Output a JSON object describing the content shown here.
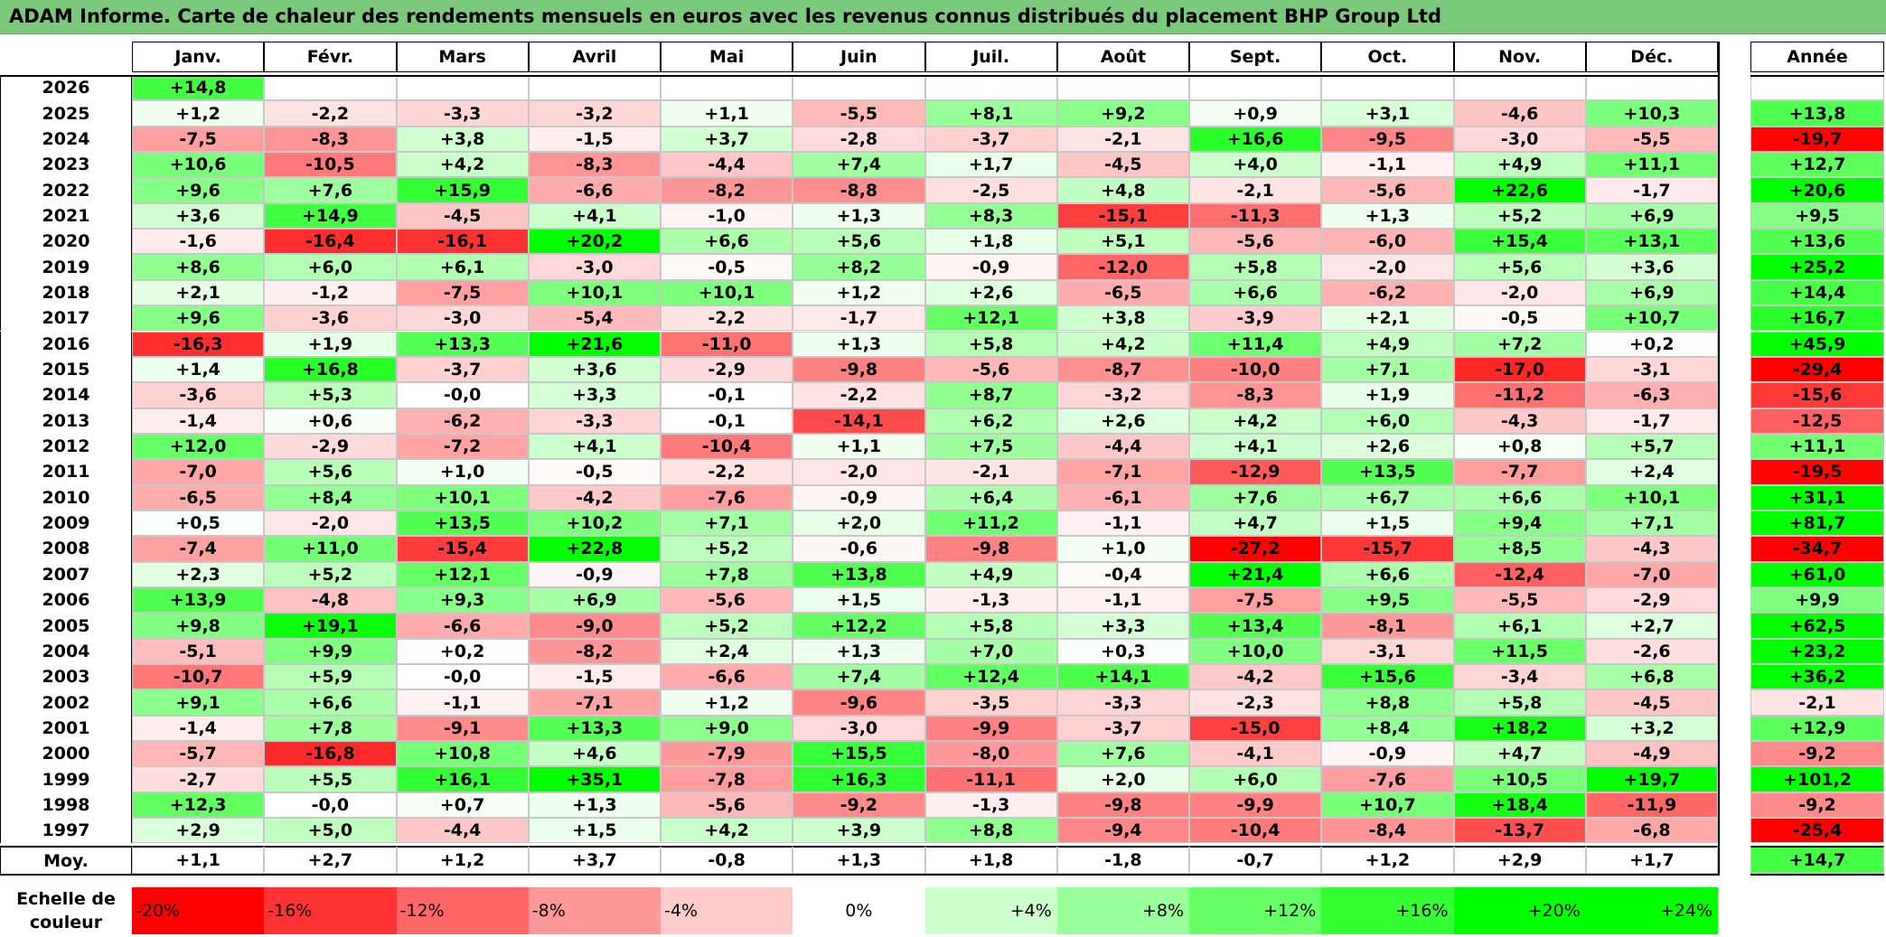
{
  "title": "ADAM Informe. Carte de chaleur des rendements mensuels en euros avec les revenus connus distribués du placement BHP Group Ltd",
  "months": [
    "Janv.",
    "Févr.",
    "Mars",
    "Avril",
    "Mai",
    "Juin",
    "Juil.",
    "Août",
    "Sept.",
    "Oct.",
    "Nov.",
    "Déc."
  ],
  "annual_header": "Année",
  "avg_label": "Moy.",
  "scale_label": "Echelle de couleur",
  "chart_data": {
    "type": "heatmap",
    "title": "ADAM Informe. Carte de chaleur des rendements mensuels en euros avec les revenus connus distribués du placement BHP Group Ltd",
    "columns": [
      "Janv.",
      "Févr.",
      "Mars",
      "Avril",
      "Mai",
      "Juin",
      "Juil.",
      "Août",
      "Sept.",
      "Oct.",
      "Nov.",
      "Déc."
    ],
    "rows": [
      {
        "year": "2026",
        "values": [
          "+14,8",
          "",
          "",
          "",
          "",
          "",
          "",
          "",
          "",
          "",
          "",
          ""
        ],
        "annual": ""
      },
      {
        "year": "2025",
        "values": [
          "+1,2",
          "-2,2",
          "-3,3",
          "-3,2",
          "+1,1",
          "-5,5",
          "+8,1",
          "+9,2",
          "+0,9",
          "+3,1",
          "-4,6",
          "+10,3"
        ],
        "annual": "+13,8"
      },
      {
        "year": "2024",
        "values": [
          "-7,5",
          "-8,3",
          "+3,8",
          "-1,5",
          "+3,7",
          "-2,8",
          "-3,7",
          "-2,1",
          "+16,6",
          "-9,5",
          "-3,0",
          "-5,5"
        ],
        "annual": "-19,7"
      },
      {
        "year": "2023",
        "values": [
          "+10,6",
          "-10,5",
          "+4,2",
          "-8,3",
          "-4,4",
          "+7,4",
          "+1,7",
          "-4,5",
          "+4,0",
          "-1,1",
          "+4,9",
          "+11,1"
        ],
        "annual": "+12,7"
      },
      {
        "year": "2022",
        "values": [
          "+9,6",
          "+7,6",
          "+15,9",
          "-6,6",
          "-8,2",
          "-8,8",
          "-2,5",
          "+4,8",
          "-2,1",
          "-5,6",
          "+22,6",
          "-1,7"
        ],
        "annual": "+20,6"
      },
      {
        "year": "2021",
        "values": [
          "+3,6",
          "+14,9",
          "-4,5",
          "+4,1",
          "-1,0",
          "+1,3",
          "+8,3",
          "-15,1",
          "-11,3",
          "+1,3",
          "+5,2",
          "+6,9"
        ],
        "annual": "+9,5"
      },
      {
        "year": "2020",
        "values": [
          "-1,6",
          "-16,4",
          "-16,1",
          "+20,2",
          "+6,6",
          "+5,6",
          "+1,8",
          "+5,1",
          "-5,6",
          "-6,0",
          "+15,4",
          "+13,1"
        ],
        "annual": "+13,6"
      },
      {
        "year": "2019",
        "values": [
          "+8,6",
          "+6,0",
          "+6,1",
          "-3,0",
          "-0,5",
          "+8,2",
          "-0,9",
          "-12,0",
          "+5,8",
          "-2,0",
          "+5,6",
          "+3,6"
        ],
        "annual": "+25,2"
      },
      {
        "year": "2018",
        "values": [
          "+2,1",
          "-1,2",
          "-7,5",
          "+10,1",
          "+10,1",
          "+1,2",
          "+2,6",
          "-6,5",
          "+6,6",
          "-6,2",
          "-2,0",
          "+6,9"
        ],
        "annual": "+14,4"
      },
      {
        "year": "2017",
        "values": [
          "+9,6",
          "-3,6",
          "-3,0",
          "-5,4",
          "-2,2",
          "-1,7",
          "+12,1",
          "+3,8",
          "-3,9",
          "+2,1",
          "-0,5",
          "+10,7"
        ],
        "annual": "+16,7"
      },
      {
        "year": "2016",
        "values": [
          "-16,3",
          "+1,9",
          "+13,3",
          "+21,6",
          "-11,0",
          "+1,3",
          "+5,8",
          "+4,2",
          "+11,4",
          "+4,9",
          "+7,2",
          "+0,2"
        ],
        "annual": "+45,9"
      },
      {
        "year": "2015",
        "values": [
          "+1,4",
          "+16,8",
          "-3,7",
          "+3,6",
          "-2,9",
          "-9,8",
          "-5,6",
          "-8,7",
          "-10,0",
          "+7,1",
          "-17,0",
          "-3,1"
        ],
        "annual": "-29,4"
      },
      {
        "year": "2014",
        "values": [
          "-3,6",
          "+5,3",
          "-0,0",
          "+3,3",
          "-0,1",
          "-2,2",
          "+8,7",
          "-3,2",
          "-8,3",
          "+1,9",
          "-11,2",
          "-6,3"
        ],
        "annual": "-15,6"
      },
      {
        "year": "2013",
        "values": [
          "-1,4",
          "+0,6",
          "-6,2",
          "-3,3",
          "-0,1",
          "-14,1",
          "+6,2",
          "+2,6",
          "+4,2",
          "+6,0",
          "-4,3",
          "-1,7"
        ],
        "annual": "-12,5"
      },
      {
        "year": "2012",
        "values": [
          "+12,0",
          "-2,9",
          "-7,2",
          "+4,1",
          "-10,4",
          "+1,1",
          "+7,5",
          "-4,4",
          "+4,1",
          "+2,6",
          "+0,8",
          "+5,7"
        ],
        "annual": "+11,1"
      },
      {
        "year": "2011",
        "values": [
          "-7,0",
          "+5,6",
          "+1,0",
          "-0,5",
          "-2,2",
          "-2,0",
          "-2,1",
          "-7,1",
          "-12,9",
          "+13,5",
          "-7,7",
          "+2,4"
        ],
        "annual": "-19,5"
      },
      {
        "year": "2010",
        "values": [
          "-6,5",
          "+8,4",
          "+10,1",
          "-4,2",
          "-7,6",
          "-0,9",
          "+6,4",
          "-6,1",
          "+7,6",
          "+6,7",
          "+6,6",
          "+10,1"
        ],
        "annual": "+31,1"
      },
      {
        "year": "2009",
        "values": [
          "+0,5",
          "-2,0",
          "+13,5",
          "+10,2",
          "+7,1",
          "+2,0",
          "+11,2",
          "-1,1",
          "+4,7",
          "+1,5",
          "+9,4",
          "+7,1"
        ],
        "annual": "+81,7"
      },
      {
        "year": "2008",
        "values": [
          "-7,4",
          "+11,0",
          "-15,4",
          "+22,8",
          "+5,2",
          "-0,6",
          "-9,8",
          "+1,0",
          "-27,2",
          "-15,7",
          "+8,5",
          "-4,3"
        ],
        "annual": "-34,7"
      },
      {
        "year": "2007",
        "values": [
          "+2,3",
          "+5,2",
          "+12,1",
          "-0,9",
          "+7,8",
          "+13,8",
          "+4,9",
          "-0,4",
          "+21,4",
          "+6,6",
          "-12,4",
          "-7,0"
        ],
        "annual": "+61,0"
      },
      {
        "year": "2006",
        "values": [
          "+13,9",
          "-4,8",
          "+9,3",
          "+6,9",
          "-5,6",
          "+1,5",
          "-1,3",
          "-1,1",
          "-7,5",
          "+9,5",
          "-5,5",
          "-2,9"
        ],
        "annual": "+9,9"
      },
      {
        "year": "2005",
        "values": [
          "+9,8",
          "+19,1",
          "-6,6",
          "-9,0",
          "+5,2",
          "+12,2",
          "+5,8",
          "+3,3",
          "+13,4",
          "-8,1",
          "+6,1",
          "+2,7"
        ],
        "annual": "+62,5"
      },
      {
        "year": "2004",
        "values": [
          "-5,1",
          "+9,9",
          "+0,2",
          "-8,2",
          "+2,4",
          "+1,3",
          "+7,0",
          "+0,3",
          "+10,0",
          "-3,1",
          "+11,5",
          "-2,6"
        ],
        "annual": "+23,2"
      },
      {
        "year": "2003",
        "values": [
          "-10,7",
          "+5,9",
          "-0,0",
          "-1,5",
          "-6,6",
          "+7,4",
          "+12,4",
          "+14,1",
          "-4,2",
          "+15,6",
          "-3,4",
          "+6,8"
        ],
        "annual": "+36,2"
      },
      {
        "year": "2002",
        "values": [
          "+9,1",
          "+6,6",
          "-1,1",
          "-7,1",
          "+1,2",
          "-9,6",
          "-3,5",
          "-3,3",
          "-2,3",
          "+8,8",
          "+5,8",
          "-4,5"
        ],
        "annual": "-2,1"
      },
      {
        "year": "2001",
        "values": [
          "-1,4",
          "+7,8",
          "-9,1",
          "+13,3",
          "+9,0",
          "-3,0",
          "-9,9",
          "-3,7",
          "-15,0",
          "+8,4",
          "+18,2",
          "+3,2"
        ],
        "annual": "+12,9"
      },
      {
        "year": "2000",
        "values": [
          "-5,7",
          "-16,8",
          "+10,8",
          "+4,6",
          "-7,9",
          "+15,5",
          "-8,0",
          "+7,6",
          "-4,1",
          "-0,9",
          "+4,7",
          "-4,9"
        ],
        "annual": "-9,2"
      },
      {
        "year": "1999",
        "values": [
          "-2,7",
          "+5,5",
          "+16,1",
          "+35,1",
          "-7,8",
          "+16,3",
          "-11,1",
          "+2,0",
          "+6,0",
          "-7,6",
          "+10,5",
          "+19,7"
        ],
        "annual": "+101,2"
      },
      {
        "year": "1998",
        "values": [
          "+12,3",
          "-0,0",
          "+0,7",
          "+1,3",
          "-5,6",
          "-9,2",
          "-1,3",
          "-9,8",
          "-9,9",
          "+10,7",
          "+18,4",
          "-11,9"
        ],
        "annual": "-9,2"
      },
      {
        "year": "1997",
        "values": [
          "+2,9",
          "+5,0",
          "-4,4",
          "+1,5",
          "+4,2",
          "+3,9",
          "+8,8",
          "-9,4",
          "-10,4",
          "-8,4",
          "-13,7",
          "-6,8"
        ],
        "annual": "-25,4"
      }
    ],
    "average": {
      "values": [
        "+1,1",
        "+2,7",
        "+1,2",
        "+3,7",
        "-0,8",
        "+1,3",
        "+1,8",
        "-1,8",
        "-0,7",
        "+1,2",
        "+2,9",
        "+1,7"
      ],
      "annual": "+14,7"
    },
    "color_scale": [
      "-20%",
      "-16%",
      "-12%",
      "-8%",
      "-4%",
      "0%",
      "+4%",
      "+8%",
      "+12%",
      "+16%",
      "+20%",
      "+24%"
    ],
    "colors": {
      "negative": "#ff0000",
      "neutral": "#ffffff",
      "positive": "#00ff00",
      "title_bar": "#7bc97b"
    }
  }
}
